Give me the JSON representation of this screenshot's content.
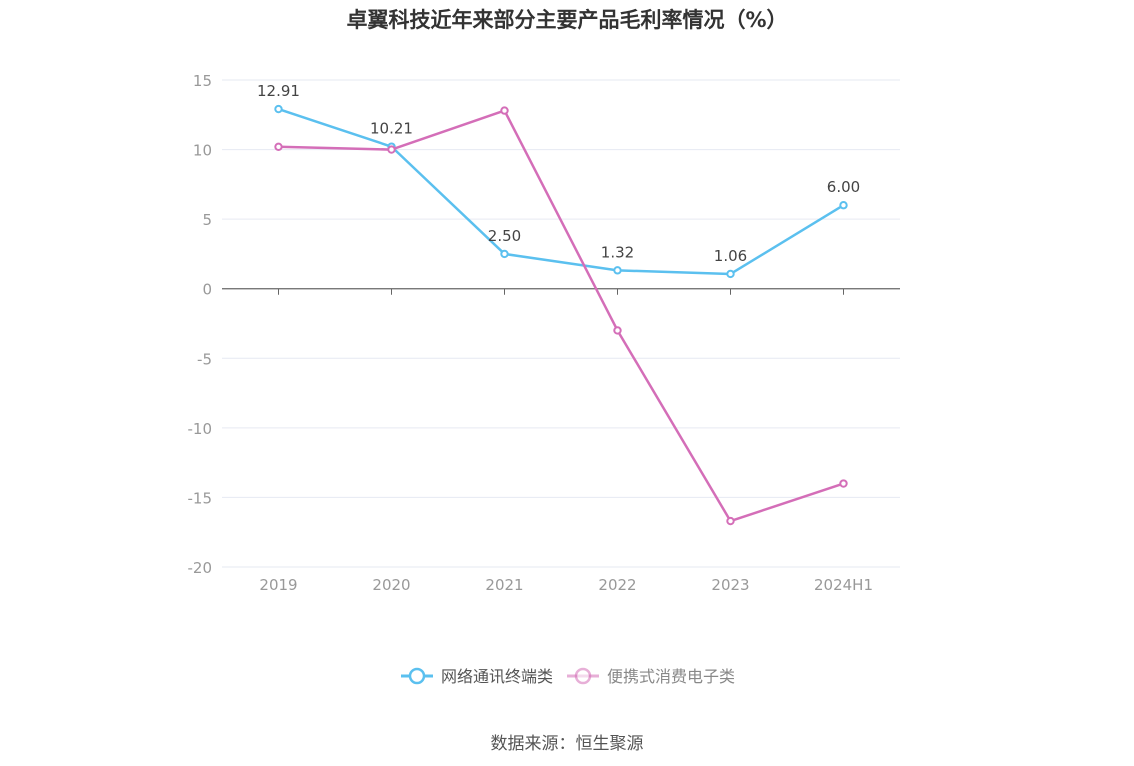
{
  "title": "卓翼科技近年来部分主要产品毛利率情况（%）",
  "source": "数据来源：恒生聚源",
  "colors": {
    "series1": "#5bc0ef",
    "series2": "#d46eb8",
    "grid": "#e6e9f2",
    "axis": "#666666",
    "tick_text": "#999999",
    "label_text": "#444444"
  },
  "chart_data": {
    "type": "line",
    "title": "卓翼科技近年来部分主要产品毛利率情况（%）",
    "categories": [
      "2019",
      "2020",
      "2021",
      "2022",
      "2023",
      "2024H1"
    ],
    "ylim": [
      -20,
      15
    ],
    "yticks": [
      15,
      10,
      5,
      0,
      -5,
      -10,
      -15,
      -20
    ],
    "grid": true,
    "legend_position": "bottom-center",
    "series": [
      {
        "name": "网络通讯终端类",
        "values": [
          12.91,
          10.21,
          2.5,
          1.32,
          1.06,
          6.0
        ],
        "labels": [
          "12.91",
          "10.21",
          "2.50",
          "1.32",
          "1.06",
          "6.00"
        ],
        "show_labels": true,
        "color": "#5bc0ef"
      },
      {
        "name": "便携式消费电子类",
        "values": [
          10.2,
          10.0,
          12.8,
          -3.0,
          -16.7,
          -14.0
        ],
        "show_labels": false,
        "color": "#d46eb8"
      }
    ]
  }
}
